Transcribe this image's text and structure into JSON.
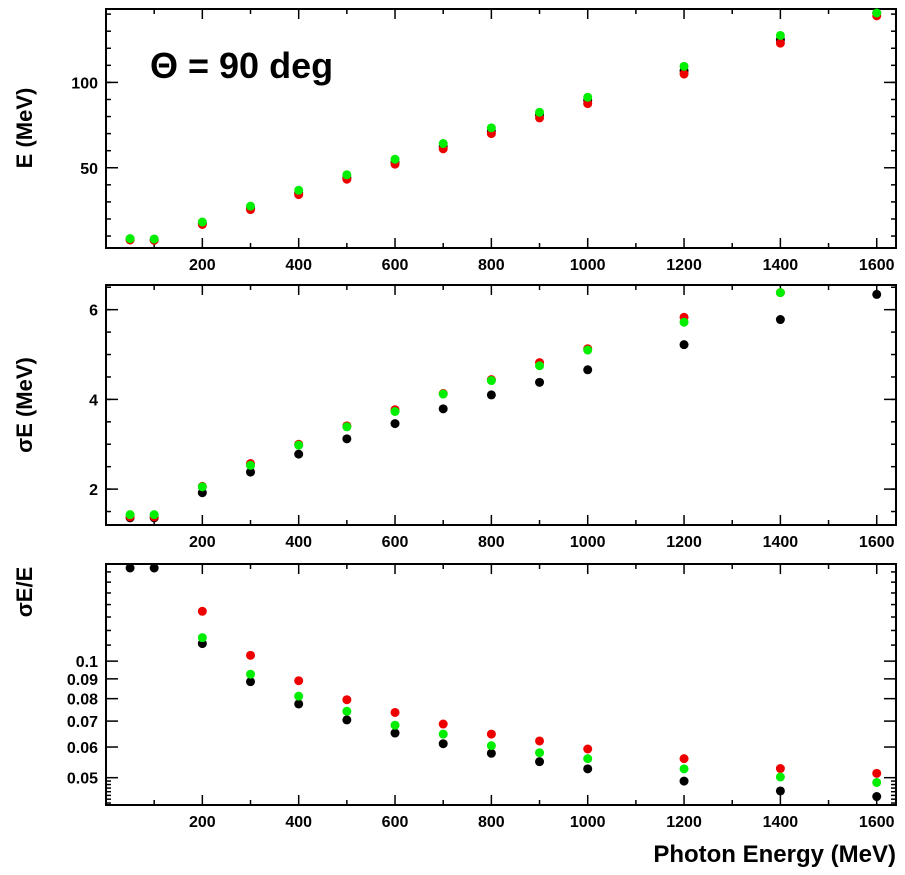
{
  "chart_data": [
    {
      "type": "scatter",
      "panel": "top",
      "ylabel": "E (MeV)",
      "xlabel": "",
      "annotation": "Θ = 90 deg",
      "xlim": [
        0,
        1640
      ],
      "ylim": [
        3,
        143
      ],
      "ylog": false,
      "xticks": [
        200,
        400,
        600,
        800,
        1000,
        1200,
        1400,
        1600
      ],
      "yticks": [
        50,
        100
      ],
      "x": [
        50,
        100,
        200,
        300,
        400,
        500,
        600,
        700,
        800,
        900,
        1000,
        1200,
        1400,
        1600
      ],
      "series": [
        {
          "color": "#000000",
          "values": [
            8,
            7.8,
            17.3,
            26.3,
            35.3,
            44.2,
            53.2,
            62.4,
            71.6,
            80.9,
            89.6,
            106.8,
            125,
            141
          ]
        },
        {
          "color": "#ee0000",
          "values": [
            7.7,
            7.5,
            16.8,
            25.5,
            34.3,
            43.3,
            52.1,
            61.1,
            70.0,
            79.2,
            87.6,
            104.9,
            123,
            139
          ]
        },
        {
          "color": "#00ee00",
          "values": [
            8.5,
            8.3,
            18.2,
            27.5,
            36.8,
            45.9,
            55.0,
            64.2,
            73.4,
            82.5,
            91.3,
            109.4,
            127.5,
            143
          ]
        }
      ]
    },
    {
      "type": "scatter",
      "panel": "middle",
      "ylabel": "σE (MeV)",
      "xlabel": "",
      "xlim": [
        0,
        1640
      ],
      "ylim": [
        1.2,
        6.55
      ],
      "ylog": false,
      "xticks": [
        200,
        400,
        600,
        800,
        1000,
        1200,
        1400,
        1600
      ],
      "yticks": [
        2,
        4,
        6
      ],
      "x": [
        50,
        100,
        200,
        300,
        400,
        500,
        600,
        700,
        800,
        900,
        1000,
        1200,
        1400,
        1600
      ],
      "series": [
        {
          "color": "#000000",
          "values": [
            1.36,
            1.36,
            1.92,
            2.38,
            2.78,
            3.12,
            3.46,
            3.79,
            4.1,
            4.38,
            4.66,
            5.22,
            5.78,
            6.34
          ]
        },
        {
          "color": "#ee0000",
          "values": [
            1.38,
            1.38,
            2.06,
            2.57,
            3.0,
            3.41,
            3.77,
            4.13,
            4.44,
            4.82,
            5.13,
            5.83,
            6.38,
            null
          ]
        },
        {
          "color": "#00ee00",
          "values": [
            1.43,
            1.43,
            2.05,
            2.53,
            2.98,
            3.39,
            3.73,
            4.12,
            4.42,
            4.75,
            5.1,
            5.72,
            6.38,
            null
          ]
        }
      ]
    },
    {
      "type": "scatter",
      "panel": "bottom",
      "ylabel": "σE/E",
      "xlabel": "Photon Energy (MeV)",
      "xlim": [
        0,
        1640
      ],
      "ylim": [
        0.0425,
        0.1782
      ],
      "ylog": true,
      "xticks": [
        200,
        400,
        600,
        800,
        1000,
        1200,
        1400,
        1600
      ],
      "yticks": [
        0.05,
        0.06,
        0.07,
        0.08,
        0.09,
        0.1
      ],
      "ytick_labels": [
        "0.05",
        "0.06",
        "0.07",
        "0.08",
        "0.09",
        "0.1"
      ],
      "x": [
        50,
        100,
        200,
        300,
        400,
        500,
        600,
        700,
        800,
        900,
        1000,
        1200,
        1400,
        1600
      ],
      "series": [
        {
          "color": "#000000",
          "values": [
            0.177,
            0.178,
            0.111,
            0.0885,
            0.0775,
            0.0705,
            0.0652,
            0.0612,
            0.0578,
            0.055,
            0.0527,
            0.049,
            0.0462,
            0.0447
          ]
        },
        {
          "color": "#ee0000",
          "values": [
            null,
            null,
            0.1345,
            0.1035,
            0.089,
            0.0795,
            0.0737,
            0.0688,
            0.0648,
            0.0622,
            0.0593,
            0.056,
            0.0528,
            0.0513
          ]
        },
        {
          "color": "#00ee00",
          "values": [
            null,
            null,
            0.115,
            0.0925,
            0.0812,
            0.0742,
            0.0683,
            0.0648,
            0.0605,
            0.058,
            0.056,
            0.0527,
            0.0502,
            0.0486
          ]
        }
      ]
    }
  ]
}
